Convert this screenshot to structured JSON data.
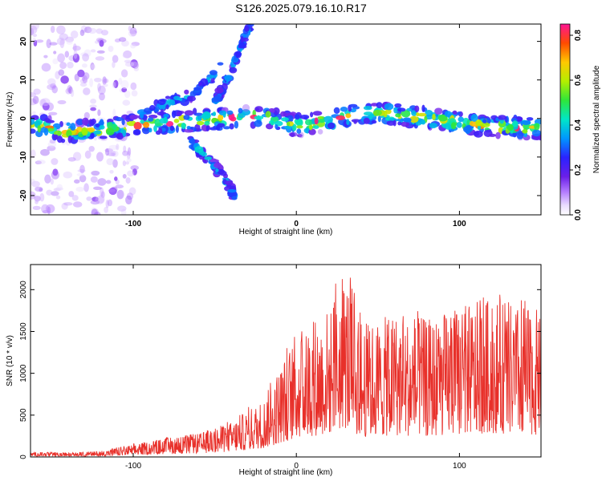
{
  "title": "S126.2025.079.16.10.R17",
  "colors": {
    "snr_line": "#e8302a",
    "frame": "#000000"
  },
  "chart_data": [
    {
      "type": "heatmap",
      "xlabel": "Height of straight line (km)",
      "ylabel": "Frequency (Hz)",
      "xlim": [
        -163,
        150
      ],
      "ylim": [
        -25,
        24.5
      ],
      "xticks": [
        -100,
        0,
        100
      ],
      "yticks": [
        -20,
        -10,
        0,
        10,
        20
      ],
      "colorbar": {
        "label": "Normalized spectral amplitude",
        "range": [
          0,
          0.85
        ],
        "ticks": [
          0.0,
          0.2,
          0.4,
          0.6,
          0.8
        ],
        "colormap": "rainbow"
      },
      "ridges": [
        {
          "name": "main",
          "points": [
            [
              -163,
              -1.5
            ],
            [
              -140,
              -3.5
            ],
            [
              -120,
              -3
            ],
            [
              -100,
              -2
            ],
            [
              -80,
              -1
            ],
            [
              -60,
              -0.5
            ],
            [
              -40,
              0
            ],
            [
              -20,
              0.5
            ],
            [
              0,
              -2
            ],
            [
              20,
              -0.5
            ],
            [
              40,
              1.5
            ],
            [
              60,
              1
            ],
            [
              80,
              0
            ],
            [
              100,
              -1
            ],
            [
              120,
              -2
            ],
            [
              150,
              -2.5
            ]
          ]
        },
        {
          "name": "upper-branch",
          "points": [
            [
              -95,
              1
            ],
            [
              -80,
              4
            ],
            [
              -65,
              6
            ],
            [
              -55,
              9
            ],
            [
              -45,
              15
            ]
          ]
        },
        {
          "name": "lower-branch",
          "points": [
            [
              -65,
              -6
            ],
            [
              -55,
              -10
            ],
            [
              -45,
              -15
            ],
            [
              -38,
              -20
            ]
          ]
        },
        {
          "name": "steep-branch",
          "points": [
            [
              -50,
              4
            ],
            [
              -40,
              12
            ],
            [
              -33,
              20
            ],
            [
              -28,
              24
            ]
          ]
        }
      ]
    },
    {
      "type": "line",
      "xlabel": "Height of straight line (km)",
      "ylabel": "SNR (10 * v/v)",
      "xlim": [
        -163,
        150
      ],
      "ylim": [
        0,
        2300
      ],
      "xticks": [
        -100,
        0,
        100
      ],
      "yticks": [
        0,
        500,
        1000,
        1500,
        2000
      ],
      "envelope": [
        {
          "x": -163,
          "y": 60
        },
        {
          "x": -140,
          "y": 50
        },
        {
          "x": -120,
          "y": 70
        },
        {
          "x": -100,
          "y": 150
        },
        {
          "x": -80,
          "y": 230
        },
        {
          "x": -60,
          "y": 280
        },
        {
          "x": -40,
          "y": 420
        },
        {
          "x": -20,
          "y": 700
        },
        {
          "x": 0,
          "y": 1500
        },
        {
          "x": 20,
          "y": 1800
        },
        {
          "x": 30,
          "y": 2250
        },
        {
          "x": 40,
          "y": 1600
        },
        {
          "x": 60,
          "y": 1700
        },
        {
          "x": 80,
          "y": 1650
        },
        {
          "x": 100,
          "y": 1800
        },
        {
          "x": 120,
          "y": 1900
        },
        {
          "x": 150,
          "y": 1750
        }
      ]
    }
  ]
}
